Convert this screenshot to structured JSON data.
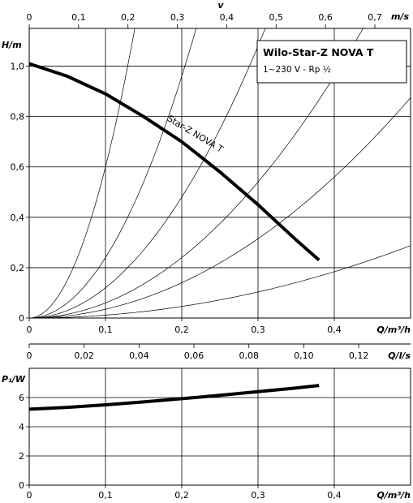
{
  "chart_data": [
    {
      "type": "line",
      "title": "Wilo-Star-Z NOVA T",
      "subtitle": "1~230 V - Rp ½",
      "curve_label": "Star-Z NOVA T",
      "xlabel": "Q/m³/h",
      "ylabel": "H/m",
      "top_axis": {
        "label_top": "v",
        "label": "m/s",
        "ticks": [
          "0",
          "0,1",
          "0,2",
          "0,3",
          "0,4",
          "0,5",
          "0,6",
          "0,7"
        ],
        "values": [
          0,
          0.1,
          0.2,
          0.3,
          0.4,
          0.5,
          0.6,
          0.7
        ]
      },
      "x_ticks": [
        "0",
        "0,1",
        "0,2",
        "0,3",
        "0,4"
      ],
      "x_tick_values": [
        0,
        0.1,
        0.2,
        0.3,
        0.4
      ],
      "y_ticks": [
        "0",
        "0,2",
        "0,4",
        "0,6",
        "0,8",
        "1,0"
      ],
      "y_tick_values": [
        0,
        0.2,
        0.4,
        0.6,
        0.8,
        1.0
      ],
      "xlim": [
        0,
        0.5
      ],
      "ylim": [
        0,
        1.15
      ],
      "grid": true,
      "series": [
        {
          "x": [
            0,
            0.05,
            0.1,
            0.15,
            0.2,
            0.25,
            0.3,
            0.35,
            0.38
          ],
          "y": [
            1.01,
            0.96,
            0.89,
            0.8,
            0.7,
            0.58,
            0.45,
            0.31,
            0.23
          ]
        }
      ],
      "system_curves": [
        {
          "k": 60
        },
        {
          "k": 24
        },
        {
          "k": 12
        },
        {
          "k": 6
        },
        {
          "k": 3.5
        },
        {
          "k": 1.15
        }
      ]
    },
    {
      "type": "line",
      "xlabel": "Q/m³/h",
      "ylabel": "P₁/W",
      "top_axis": {
        "label": "Q/l/s",
        "ticks": [
          "0",
          "0,02",
          "0,04",
          "0,06",
          "0,08",
          "0,10",
          "0,12"
        ],
        "values": [
          0,
          0.02,
          0.04,
          0.06,
          0.08,
          0.1,
          0.12
        ]
      },
      "x_ticks": [
        "0",
        "0,1",
        "0,2",
        "0,3",
        "0,4"
      ],
      "x_tick_values": [
        0,
        0.1,
        0.2,
        0.3,
        0.4
      ],
      "y_ticks": [
        "0",
        "2",
        "4",
        "6"
      ],
      "y_tick_values": [
        0,
        2,
        4,
        6
      ],
      "xlim": [
        0,
        0.5
      ],
      "ylim": [
        0,
        8
      ],
      "grid": true,
      "series": [
        {
          "x": [
            0,
            0.05,
            0.1,
            0.15,
            0.2,
            0.25,
            0.3,
            0.35,
            0.38
          ],
          "y": [
            5.2,
            5.33,
            5.5,
            5.7,
            5.92,
            6.15,
            6.4,
            6.65,
            6.83
          ]
        }
      ]
    }
  ]
}
